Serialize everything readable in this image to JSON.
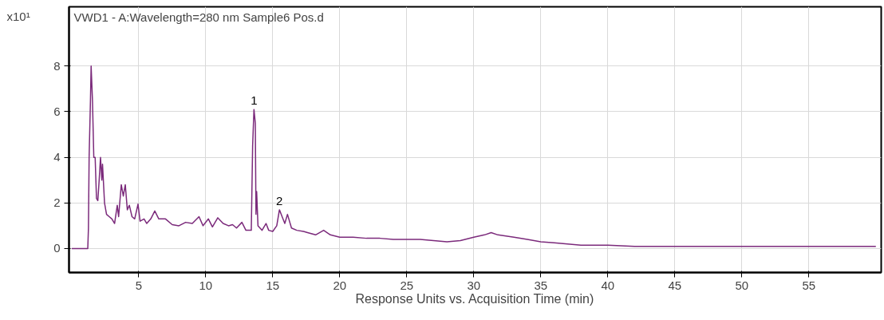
{
  "chart_data": {
    "type": "line",
    "title": "VWD1 - A:Wavelength=280 nm Sample6 Pos.d",
    "xlabel": "Response Units vs. Acquisition Time (min)",
    "ylabel": "x10¹",
    "xlim": [
      -0.2,
      60.4
    ],
    "ylim": [
      -1.05,
      10.6
    ],
    "xticks": [
      5,
      10,
      15,
      20,
      25,
      30,
      35,
      40,
      45,
      50,
      55
    ],
    "yticks": [
      0,
      2,
      4,
      6,
      8
    ],
    "grid": true,
    "marker": "none",
    "line_style": "solid",
    "annotations": [
      {
        "text": "1",
        "x": 13.6,
        "y": 6.1
      },
      {
        "text": "2",
        "x": 15.5,
        "y": 1.7
      }
    ],
    "series": [
      {
        "color": "#7b2a7b",
        "x": [
          0,
          1.2,
          1.25,
          1.3,
          1.4,
          1.45,
          1.55,
          1.65,
          1.75,
          1.85,
          1.95,
          2.05,
          2.15,
          2.25,
          2.3,
          2.45,
          2.6,
          2.8,
          3.0,
          3.2,
          3.4,
          3.5,
          3.7,
          3.85,
          4.0,
          4.15,
          4.3,
          4.5,
          4.7,
          4.95,
          5.1,
          5.4,
          5.6,
          5.9,
          6.2,
          6.5,
          7,
          7.5,
          8,
          8.5,
          9,
          9.5,
          9.8,
          10.2,
          10.5,
          10.9,
          11.3,
          11.7,
          12.0,
          12.3,
          12.7,
          13.0,
          13.4,
          13.5,
          13.6,
          13.7,
          13.75,
          13.8,
          13.9,
          14.2,
          14.5,
          14.7,
          15.0,
          15.3,
          15.5,
          15.7,
          15.9,
          16.1,
          16.4,
          16.8,
          17.3,
          17.6,
          18.2,
          18.8,
          19.3,
          20,
          21,
          22,
          23,
          24,
          25,
          26,
          27,
          28,
          29,
          30,
          30.8,
          31.3,
          31.8,
          33,
          34,
          35,
          36,
          37,
          38,
          40,
          42,
          45,
          50,
          55,
          60
        ],
        "values": [
          0,
          0,
          0.9,
          4,
          6.5,
          8,
          6.5,
          4,
          4,
          2.2,
          2.1,
          3,
          4,
          3,
          3.7,
          2,
          1.5,
          1.4,
          1.3,
          1.1,
          1.9,
          1.4,
          2.8,
          2.3,
          2.8,
          1.7,
          1.9,
          1.4,
          1.3,
          1.95,
          1.2,
          1.3,
          1.1,
          1.3,
          1.65,
          1.3,
          1.3,
          1.05,
          1.0,
          1.15,
          1.1,
          1.4,
          1.0,
          1.3,
          0.95,
          1.35,
          1.1,
          1.0,
          1.05,
          0.9,
          1.15,
          0.8,
          0.8,
          4.5,
          6.1,
          5.5,
          1.5,
          2.5,
          1.0,
          0.8,
          1.1,
          0.8,
          0.75,
          1.0,
          1.7,
          1.4,
          1.1,
          1.5,
          0.9,
          0.8,
          0.75,
          0.7,
          0.6,
          0.8,
          0.6,
          0.5,
          0.5,
          0.45,
          0.45,
          0.4,
          0.4,
          0.4,
          0.35,
          0.3,
          0.35,
          0.5,
          0.6,
          0.7,
          0.6,
          0.5,
          0.4,
          0.3,
          0.25,
          0.2,
          0.15,
          0.15,
          0.1,
          0.1,
          0.1,
          0.1,
          0.1
        ]
      }
    ]
  }
}
